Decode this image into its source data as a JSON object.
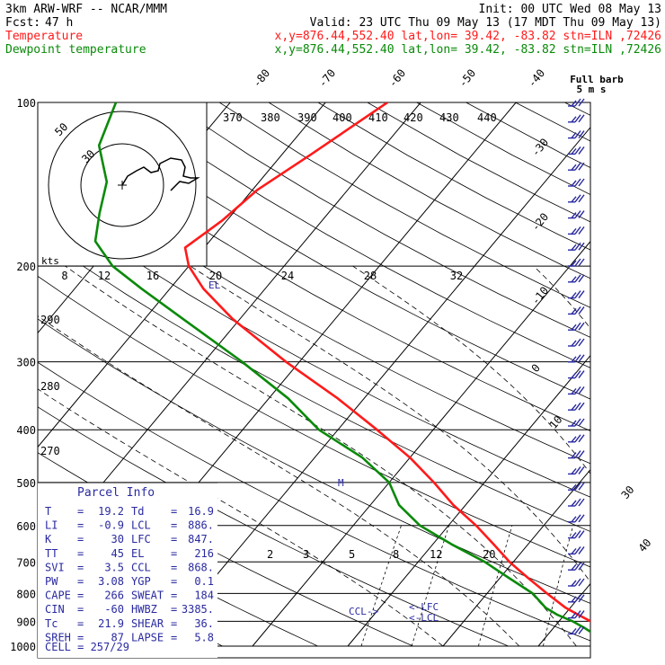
{
  "header": {
    "model": "3km ARW-WRF -- NCAR/MMM",
    "init": "Init: 00 UTC Wed 08 May 13",
    "fcst_label": "Fcst:",
    "fcst_value": "47 h",
    "valid": "Valid: 23 UTC Thu 09 May 13 (17 MDT Thu 09 May 13)",
    "temp_label": "Temperature",
    "temp_info": "x,y=876.44,552.40   lat,lon= 39.42, -83.82   stn=ILN ,72426",
    "dew_label": "Dewpoint temperature",
    "dew_info": "x,y=876.44,552.40   lat,lon= 39.42, -83.82   stn=ILN ,72426",
    "full_barb_1": "Full barb",
    "full_barb_2": "5 m s"
  },
  "colors": {
    "temperature": "#ff1a1a",
    "dewpoint": "#0a8a0a",
    "info": "#2a2aa0",
    "grid": "#000000"
  },
  "parcel_info": {
    "title": "Parcel Info",
    "rows": [
      {
        "a": "T",
        "av": "19.2",
        "b": "Td",
        "bv": "16.9"
      },
      {
        "a": "LI",
        "av": "-0.9",
        "b": "LCL",
        "bv": "886."
      },
      {
        "a": "K",
        "av": "30",
        "b": "LFC",
        "bv": "847."
      },
      {
        "a": "TT",
        "av": "45",
        "b": "EL",
        "bv": "216"
      },
      {
        "a": "SVI",
        "av": "3.5",
        "b": "CCL",
        "bv": "868."
      },
      {
        "a": "PW",
        "av": "3.08",
        "b": "YGP",
        "bv": "0.1"
      },
      {
        "a": "CAPE",
        "av": "266",
        "b": "SWEAT",
        "bv": "184"
      },
      {
        "a": "CIN",
        "av": "-60",
        "b": "HWBZ",
        "bv": "3385."
      },
      {
        "a": "Tc",
        "av": "21.9",
        "b": "SHEAR",
        "bv": "36."
      },
      {
        "a": "SREH",
        "av": "87",
        "b": "LAPSE",
        "bv": "5.8"
      }
    ],
    "cell": "CELL = 257/29"
  },
  "annotations": {
    "el": "EL",
    "lcl": "CCL->",
    "lfc": "<-LFC",
    "lcl2": "<-LCL",
    "m": "M"
  },
  "chart_data": {
    "type": "line",
    "title": "",
    "ylabel_ticks": [
      "100",
      "200",
      "300",
      "400",
      "500",
      "600",
      "700",
      "800",
      "900",
      "1000"
    ],
    "pressure_levels": [
      100,
      200,
      300,
      400,
      500,
      600,
      700,
      800,
      900,
      1000
    ],
    "isotherm_labels": [
      "-80",
      "-70",
      "-60",
      "-50",
      "-40",
      "-30",
      "-20",
      "-10",
      "0",
      "10",
      "30",
      "40"
    ],
    "theta_labels": [
      "370",
      "380",
      "390",
      "400",
      "410",
      "420",
      "430",
      "440",
      "290",
      "280",
      "270"
    ],
    "mixing_ratio_labels": [
      "2",
      "3",
      "5",
      "8",
      "12",
      "20"
    ],
    "hodograph": {
      "units": "kts",
      "ring_labels": [
        "30",
        "50"
      ],
      "axis_labels": [
        "8",
        "12",
        "16",
        "20",
        "24",
        "28",
        "32"
      ]
    },
    "series": [
      {
        "name": "Temperature",
        "pressure": [
          1000,
          975,
          950,
          925,
          900,
          875,
          850,
          800,
          750,
          700,
          650,
          600,
          550,
          500,
          450,
          400,
          350,
          300,
          250,
          220,
          200,
          185,
          165,
          145,
          125,
          100
        ],
        "temperature_c": [
          21.5,
          19.2,
          17.0,
          15.1,
          13.3,
          11.4,
          9.5,
          6.3,
          3.0,
          -0.4,
          -3.6,
          -7.1,
          -11.3,
          -15.3,
          -20.0,
          -25.9,
          -32.8,
          -41.4,
          -50.8,
          -56.5,
          -60.0,
          -62.0,
          -60.5,
          -59.5,
          -57.0,
          -53.5
        ]
      },
      {
        "name": "Dewpoint temperature",
        "pressure": [
          1000,
          975,
          950,
          925,
          900,
          875,
          850,
          800,
          750,
          700,
          650,
          600,
          550,
          500,
          450,
          400,
          350,
          300,
          250,
          220,
          200,
          180,
          160,
          140,
          120,
          100
        ],
        "dewpoint_c": [
          16.9,
          16.2,
          14.8,
          13.2,
          11.4,
          9.2,
          7.4,
          4.8,
          1.0,
          -3.0,
          -8.0,
          -13.0,
          -17.0,
          -20.0,
          -25.0,
          -32.0,
          -38.0,
          -46.0,
          -56.0,
          -63.0,
          -68.0,
          -72.0,
          -74.0,
          -76.0,
          -80.0,
          -82.0
        ]
      }
    ]
  }
}
